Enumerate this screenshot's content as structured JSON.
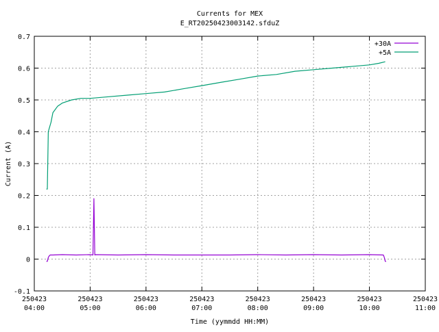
{
  "chart_data": {
    "type": "line",
    "title": "Currents for MEX",
    "subtitle": "E_RT20250423003142.sfduZ",
    "xlabel": "Time (yymmdd HH:MM)",
    "ylabel": "Current (A)",
    "xlim": [
      "04:00",
      "11:00"
    ],
    "ylim": [
      -0.1,
      0.7
    ],
    "grid": true,
    "legend_position": "top-right",
    "y_ticks": [
      "-0.1",
      "0",
      "0.1",
      "0.2",
      "0.3",
      "0.4",
      "0.5",
      "0.6",
      "0.7"
    ],
    "x_ticks": [
      {
        "date": "250423",
        "time": "04:00"
      },
      {
        "date": "250423",
        "time": "05:00"
      },
      {
        "date": "250423",
        "time": "06:00"
      },
      {
        "date": "250423",
        "time": "07:00"
      },
      {
        "date": "250423",
        "time": "08:00"
      },
      {
        "date": "250423",
        "time": "09:00"
      },
      {
        "date": "250423",
        "time": "10:00"
      },
      {
        "date": "250423",
        "time": "11:00"
      }
    ],
    "series": [
      {
        "name": "+30A",
        "color": "#9400d3",
        "x": [
          "04:13",
          "04:14",
          "04:15",
          "04:16",
          "04:17",
          "04:20",
          "04:30",
          "04:45",
          "05:00",
          "05:03",
          "05:04",
          "05:05",
          "05:06",
          "05:30",
          "06:00",
          "06:30",
          "07:00",
          "07:30",
          "08:00",
          "08:30",
          "09:00",
          "09:30",
          "10:00",
          "10:15",
          "10:16",
          "10:17",
          "10:18"
        ],
        "values": [
          -0.007,
          -0.007,
          0.005,
          0.01,
          0.013,
          0.013,
          0.014,
          0.013,
          0.014,
          0.013,
          0.19,
          0.013,
          0.014,
          0.013,
          0.014,
          0.013,
          0.013,
          0.013,
          0.014,
          0.013,
          0.014,
          0.013,
          0.014,
          0.013,
          0.005,
          -0.007,
          -0.007
        ]
      },
      {
        "name": "+5A",
        "color": "#009e73",
        "x": [
          "04:13",
          "04:14",
          "04:15",
          "04:16",
          "04:18",
          "04:20",
          "04:25",
          "04:30",
          "04:40",
          "04:50",
          "05:00",
          "05:20",
          "05:40",
          "06:00",
          "06:20",
          "06:40",
          "07:00",
          "07:20",
          "07:40",
          "08:00",
          "08:20",
          "08:40",
          "09:00",
          "09:20",
          "09:40",
          "10:00",
          "10:10",
          "10:17"
        ],
        "values": [
          0.22,
          0.22,
          0.4,
          0.41,
          0.43,
          0.46,
          0.48,
          0.49,
          0.5,
          0.505,
          0.505,
          0.51,
          0.515,
          0.52,
          0.525,
          0.535,
          0.545,
          0.555,
          0.565,
          0.575,
          0.58,
          0.59,
          0.595,
          0.6,
          0.605,
          0.61,
          0.615,
          0.62
        ]
      }
    ]
  }
}
